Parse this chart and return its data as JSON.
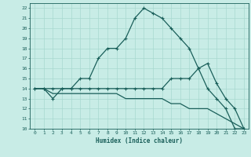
{
  "xlabel": "Humidex (Indice chaleur)",
  "xlim": [
    -0.5,
    23.5
  ],
  "ylim": [
    10,
    22.5
  ],
  "xticks": [
    0,
    1,
    2,
    3,
    4,
    5,
    6,
    7,
    8,
    9,
    10,
    11,
    12,
    13,
    14,
    15,
    16,
    17,
    18,
    19,
    20,
    21,
    22,
    23
  ],
  "yticks": [
    10,
    11,
    12,
    13,
    14,
    15,
    16,
    17,
    18,
    19,
    20,
    21,
    22
  ],
  "bg_color": "#c8ece6",
  "line_color": "#1a5f5a",
  "grid_color": "#a8d8d0",
  "line1_x": [
    0,
    1,
    2,
    3,
    4,
    5,
    6,
    7,
    8,
    9,
    10,
    11,
    12,
    13,
    14,
    15,
    16,
    17,
    18,
    19,
    20,
    21,
    22,
    23
  ],
  "line1_y": [
    14,
    14,
    13,
    14,
    14,
    15,
    15,
    17,
    18,
    18,
    19,
    21,
    22,
    21.5,
    21,
    20,
    19,
    18,
    16,
    14,
    13,
    12,
    10,
    10
  ],
  "line2_x": [
    0,
    1,
    2,
    3,
    4,
    5,
    6,
    7,
    8,
    9,
    10,
    11,
    12,
    13,
    14,
    15,
    16,
    17,
    18,
    19,
    20,
    21,
    22,
    23
  ],
  "line2_y": [
    14,
    14,
    14,
    14,
    14,
    14,
    14,
    14,
    14,
    14,
    14,
    14,
    14,
    14,
    14,
    15,
    15,
    15,
    16,
    16.5,
    14.5,
    13,
    12,
    10
  ],
  "line3_x": [
    0,
    1,
    2,
    3,
    4,
    5,
    6,
    7,
    8,
    9,
    10,
    11,
    12,
    13,
    14,
    15,
    16,
    17,
    18,
    19,
    20,
    21,
    22,
    23
  ],
  "line3_y": [
    14,
    14,
    13.5,
    13.5,
    13.5,
    13.5,
    13.5,
    13.5,
    13.5,
    13.5,
    13,
    13,
    13,
    13,
    13,
    12.5,
    12.5,
    12,
    12,
    12,
    11.5,
    11,
    10.5,
    10
  ]
}
